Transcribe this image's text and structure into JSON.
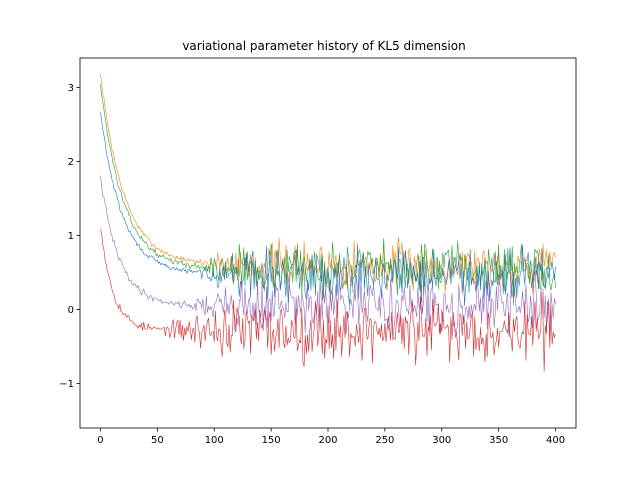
{
  "chart_data": {
    "type": "line",
    "title": "variational parameter history of KL5 dimension",
    "xlabel": "",
    "ylabel": "",
    "xlim": [
      -18,
      418
    ],
    "ylim": [
      -1.6,
      3.4
    ],
    "xticks": [
      0,
      50,
      100,
      150,
      200,
      250,
      300,
      350,
      400
    ],
    "xtick_labels": [
      "0",
      "50",
      "100",
      "150",
      "200",
      "250",
      "300",
      "350",
      "400"
    ],
    "yticks": [
      -1,
      0,
      1,
      2,
      3
    ],
    "ytick_labels": [
      "−1",
      "0",
      "1",
      "2",
      "3"
    ],
    "grid": false,
    "legend": "none",
    "n_points": 401,
    "series": [
      {
        "color": "#ff7f0e",
        "start": 3.18,
        "decay_rate": 0.048,
        "plateau": 0.6,
        "noise_start_x": 85,
        "noise_ramp": 40,
        "jitter_small": 0.03,
        "jitter_large": 0.26,
        "seed": 7,
        "points": [
          [
            0,
            3.18
          ],
          [
            5,
            2.85
          ],
          [
            10,
            2.45
          ],
          [
            20,
            2.0
          ],
          [
            30,
            1.6
          ],
          [
            50,
            1.05
          ],
          [
            70,
            0.75
          ],
          [
            90,
            0.62
          ],
          [
            150,
            0.6
          ],
          [
            250,
            0.6
          ],
          [
            400,
            0.6
          ]
        ]
      },
      {
        "color": "#2ca02c",
        "start": 3.05,
        "decay_rate": 0.05,
        "plateau": 0.55,
        "noise_start_x": 85,
        "noise_ramp": 40,
        "jitter_small": 0.03,
        "jitter_large": 0.28,
        "seed": 13,
        "points": [
          [
            0,
            3.05
          ],
          [
            5,
            2.7
          ],
          [
            10,
            2.3
          ],
          [
            20,
            1.9
          ],
          [
            30,
            1.5
          ],
          [
            50,
            0.95
          ],
          [
            70,
            0.68
          ],
          [
            90,
            0.58
          ],
          [
            150,
            0.55
          ],
          [
            250,
            0.55
          ],
          [
            400,
            0.55
          ]
        ]
      },
      {
        "color": "#1f77b4",
        "start": 2.66,
        "decay_rate": 0.052,
        "plateau": 0.48,
        "noise_start_x": 85,
        "noise_ramp": 40,
        "jitter_small": 0.03,
        "jitter_large": 0.28,
        "seed": 29,
        "points": [
          [
            0,
            2.66
          ],
          [
            5,
            2.4
          ],
          [
            10,
            2.1
          ],
          [
            20,
            1.7
          ],
          [
            30,
            1.35
          ],
          [
            50,
            0.85
          ],
          [
            70,
            0.6
          ],
          [
            90,
            0.52
          ],
          [
            150,
            0.48
          ],
          [
            250,
            0.48
          ],
          [
            400,
            0.48
          ]
        ]
      },
      {
        "color": "#9467bd",
        "start": 1.78,
        "decay_rate": 0.06,
        "plateau": 0.05,
        "noise_start_x": 75,
        "noise_ramp": 50,
        "jitter_small": 0.04,
        "jitter_large": 0.3,
        "seed": 41,
        "points": [
          [
            0,
            1.78
          ],
          [
            5,
            1.35
          ],
          [
            10,
            1.0
          ],
          [
            20,
            0.65
          ],
          [
            30,
            0.45
          ],
          [
            50,
            0.3
          ],
          [
            70,
            0.2
          ],
          [
            90,
            0.1
          ],
          [
            150,
            0.05
          ],
          [
            250,
            0.05
          ],
          [
            400,
            0.05
          ]
        ]
      },
      {
        "color": "#d62728",
        "start": 1.15,
        "decay_rate": 0.09,
        "plateau": -0.28,
        "noise_start_x": 55,
        "noise_ramp": 60,
        "jitter_small": 0.05,
        "jitter_large": 0.34,
        "seed": 53,
        "points": [
          [
            0,
            1.15
          ],
          [
            5,
            0.6
          ],
          [
            10,
            0.3
          ],
          [
            20,
            0.0
          ],
          [
            30,
            -0.15
          ],
          [
            50,
            -0.2
          ],
          [
            70,
            -0.25
          ],
          [
            90,
            -0.28
          ],
          [
            150,
            -0.28
          ],
          [
            250,
            -0.28
          ],
          [
            400,
            -0.28
          ]
        ]
      }
    ]
  }
}
